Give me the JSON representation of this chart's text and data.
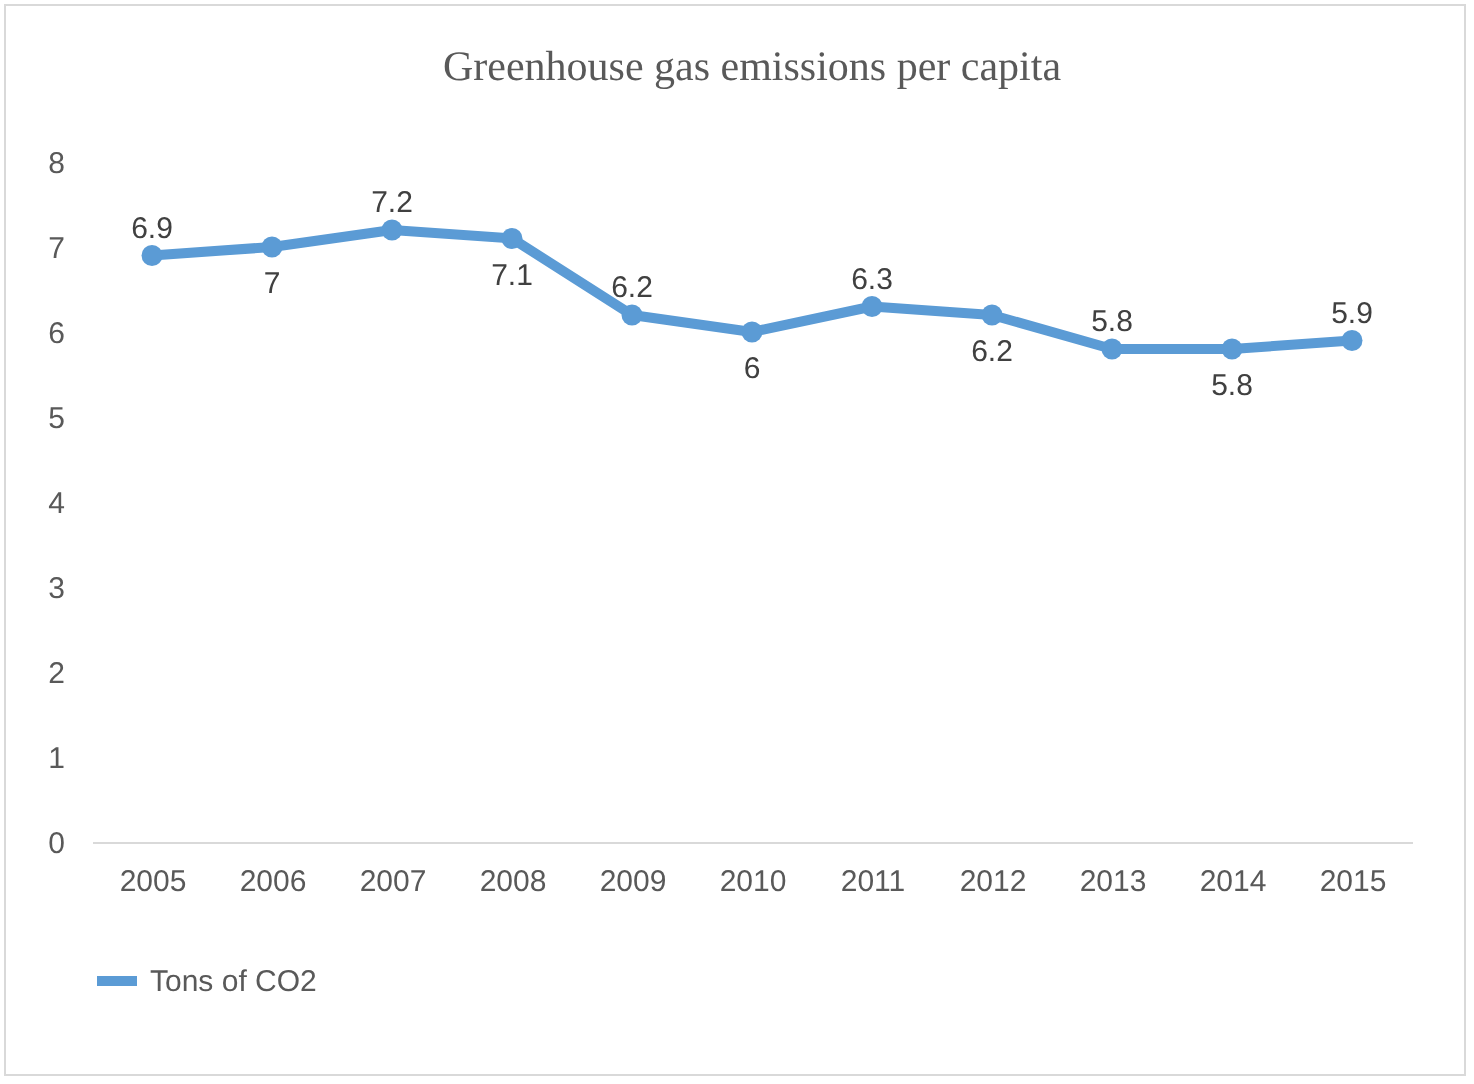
{
  "chart_data": {
    "type": "line",
    "title": "Greenhouse gas emissions per capita",
    "categories": [
      "2005",
      "2006",
      "2007",
      "2008",
      "2009",
      "2010",
      "2011",
      "2012",
      "2013",
      "2014",
      "2015"
    ],
    "series": [
      {
        "name": "Tons of CO2",
        "color": "#5b9bd5",
        "values": [
          6.9,
          7,
          7.2,
          7.1,
          6.2,
          6,
          6.3,
          6.2,
          5.8,
          5.8,
          5.9
        ]
      }
    ],
    "ylim": [
      0,
      8
    ],
    "yticks": [
      0,
      1,
      2,
      3,
      4,
      5,
      6,
      7,
      8
    ],
    "grid": false,
    "legend": "bottom",
    "marker": "circle",
    "line_style": "solid",
    "data_labels": true
  }
}
